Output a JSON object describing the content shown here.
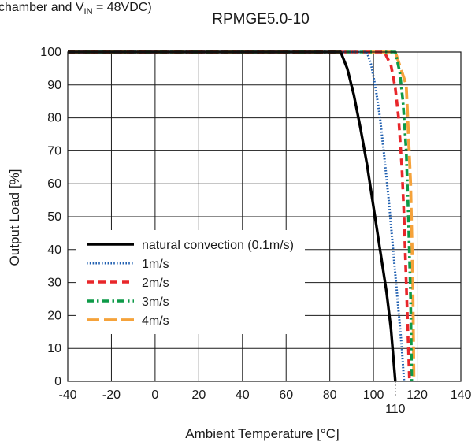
{
  "header_fragment": {
    "text": "chamber and V",
    "subscript": "IN",
    "tail": " = 48VDC)"
  },
  "chart_data": {
    "type": "line",
    "title": "RPMGE5.0-10",
    "xlabel": "Ambient Temperature [°C]",
    "ylabel": "Output Load [%]",
    "xlim": [
      -40,
      140
    ],
    "ylim": [
      0,
      100
    ],
    "x_ticks": [
      "-40",
      "-20",
      "0",
      "20",
      "40",
      "60",
      "80",
      "100",
      "120",
      "140"
    ],
    "y_ticks": [
      "0",
      "10",
      "20",
      "30",
      "40",
      "50",
      "60",
      "70",
      "80",
      "90",
      "100"
    ],
    "grid": true,
    "legend_position": "lower-left",
    "annotation": {
      "x": 110,
      "label": "110"
    },
    "series": [
      {
        "name": "natural convection (0.1m/s)",
        "color": "#000000",
        "style": "solid",
        "points": [
          [
            -40,
            100
          ],
          [
            85,
            100
          ],
          [
            88,
            95
          ],
          [
            91,
            87
          ],
          [
            94,
            77
          ],
          [
            97,
            66
          ],
          [
            100,
            53
          ],
          [
            103,
            40
          ],
          [
            106,
            27
          ],
          [
            108,
            16
          ],
          [
            110,
            0
          ]
        ]
      },
      {
        "name": "1m/s",
        "color": "#1f5fb0",
        "style": "dotted",
        "points": [
          [
            -40,
            100
          ],
          [
            97,
            100
          ],
          [
            99,
            96
          ],
          [
            101,
            89
          ],
          [
            103,
            80
          ],
          [
            105,
            68
          ],
          [
            107,
            55
          ],
          [
            109,
            40
          ],
          [
            111,
            25
          ],
          [
            113,
            10
          ],
          [
            114,
            0
          ]
        ]
      },
      {
        "name": "2m/s",
        "color": "#e8262a",
        "style": "dashed",
        "points": [
          [
            -40,
            100
          ],
          [
            105,
            100
          ],
          [
            108,
            96
          ],
          [
            110,
            89
          ],
          [
            111.5,
            80
          ],
          [
            113,
            65
          ],
          [
            114,
            50
          ],
          [
            115,
            30
          ],
          [
            116,
            10
          ],
          [
            116.5,
            0
          ]
        ]
      },
      {
        "name": "3m/s",
        "color": "#0e9a48",
        "style": "dashdot",
        "points": [
          [
            -40,
            100
          ],
          [
            110,
            100
          ],
          [
            112,
            94
          ],
          [
            113.5,
            85
          ],
          [
            115,
            70
          ],
          [
            116,
            50
          ],
          [
            117,
            25
          ],
          [
            117.5,
            0
          ]
        ]
      },
      {
        "name": "4m/s",
        "color": "#f5a23a",
        "style": "longdash",
        "points": [
          [
            -40,
            100
          ],
          [
            110,
            100
          ],
          [
            115,
            90
          ],
          [
            117,
            60
          ],
          [
            118,
            30
          ],
          [
            118.5,
            0
          ]
        ]
      }
    ]
  }
}
